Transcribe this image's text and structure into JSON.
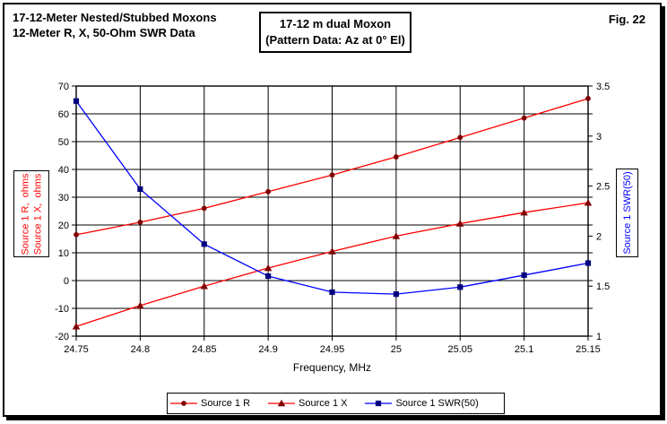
{
  "header": {
    "title_line1": "17-12-Meter Nested/Stubbed Moxons",
    "title_line2": "12-Meter R, X, 50-Ohm SWR Data",
    "annotation_line1": "17-12 m dual Moxon",
    "annotation_line2": "(Pattern Data: Az at 0° El)",
    "fig_label": "Fig. 22"
  },
  "chart_data": {
    "type": "line",
    "x": [
      24.75,
      24.8,
      24.85,
      24.9,
      24.95,
      25.0,
      25.05,
      25.1,
      25.15
    ],
    "x_axis": {
      "label": "Frequency, MHz",
      "ticks": [
        "24.75",
        "24.8",
        "24.85",
        "24.9",
        "24.95",
        "25",
        "25.05",
        "25.1",
        "25.15"
      ],
      "range": [
        24.75,
        25.15
      ]
    },
    "left_axis": {
      "label_line1": "Source 1 R,  ohms",
      "label_line2": "Source 1 X,  ohms",
      "ticks": [
        "70",
        "60",
        "50",
        "40",
        "30",
        "20",
        "10",
        "0",
        "-10",
        "-20"
      ],
      "range": [
        -20,
        70
      ],
      "color": "#ff0000"
    },
    "right_axis": {
      "label": "Source 1 SWR(50)",
      "ticks": [
        "3.5",
        "3",
        "2.5",
        "2",
        "1.5",
        "1"
      ],
      "range": [
        1,
        3.5
      ],
      "color": "#0000ff"
    },
    "grid": true,
    "grid_color": "#000000",
    "series": [
      {
        "name": "Source 1 R",
        "axis": "left",
        "color": "#ff0000",
        "marker": "circle",
        "marker_color": "#800000",
        "values": [
          16.5,
          21,
          26,
          32,
          38,
          44.5,
          51.5,
          58.5,
          65.5
        ]
      },
      {
        "name": "Source 1 X",
        "axis": "left",
        "color": "#ff0000",
        "marker": "triangle",
        "marker_color": "#800000",
        "values": [
          -16.5,
          -9,
          -2,
          4.5,
          10.5,
          16,
          20.5,
          24.5,
          28
        ]
      },
      {
        "name": "Source 1 SWR(50)",
        "axis": "right",
        "color": "#0000ff",
        "marker": "square",
        "marker_color": "#000080",
        "values": [
          3.35,
          2.47,
          1.92,
          1.6,
          1.44,
          1.42,
          1.49,
          1.61,
          1.73
        ]
      }
    ]
  }
}
